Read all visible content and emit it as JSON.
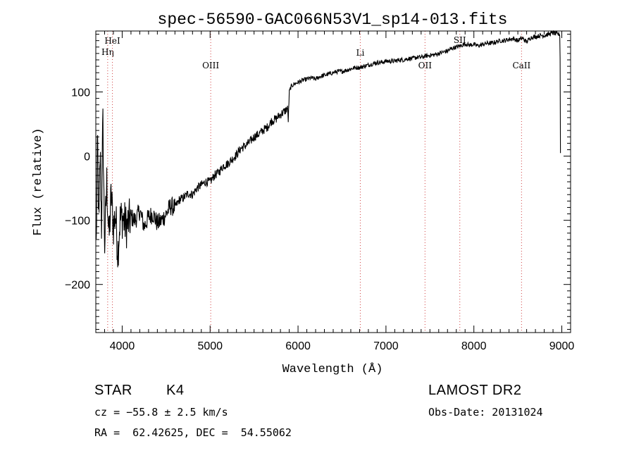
{
  "chart_data": {
    "type": "line",
    "title": "spec-56590-GAC066N53V1_sp14-013.fits",
    "xlabel": "Wavelength (Å)",
    "ylabel": "Flux (relative)",
    "xlim": [
      3700,
      9100
    ],
    "ylim": [
      -275,
      195
    ],
    "x_ticks": [
      4000,
      5000,
      6000,
      7000,
      8000,
      9000
    ],
    "y_ticks": [
      -200,
      -100,
      0,
      100
    ],
    "grid": false,
    "series": [
      {
        "color": "#000000",
        "x": [
          3705,
          3720,
          3735,
          3750,
          3765,
          3780,
          3800,
          3825,
          3850,
          3875,
          3900,
          3925,
          3950,
          3975,
          4000,
          4050,
          4100,
          4150,
          4200,
          4250,
          4300,
          4350,
          4400,
          4450,
          4500,
          4550,
          4600,
          4650,
          4700,
          4750,
          4800,
          4850,
          4900,
          4950,
          5000,
          5050,
          5100,
          5150,
          5200,
          5250,
          5300,
          5350,
          5400,
          5450,
          5500,
          5550,
          5600,
          5650,
          5700,
          5750,
          5800,
          5850,
          5880,
          5890,
          5900,
          5920,
          5950,
          6000,
          6050,
          6100,
          6150,
          6200,
          6250,
          6300,
          6350,
          6400,
          6450,
          6500,
          6550,
          6600,
          6650,
          6700,
          6750,
          6800,
          6850,
          6900,
          6950,
          7000,
          7050,
          7100,
          7150,
          7200,
          7250,
          7300,
          7350,
          7400,
          7450,
          7500,
          7550,
          7600,
          7650,
          7700,
          7750,
          7800,
          7850,
          7900,
          7950,
          8000,
          8050,
          8100,
          8150,
          8200,
          8250,
          8300,
          8350,
          8400,
          8450,
          8500,
          8550,
          8600,
          8650,
          8700,
          8750,
          8800,
          8850,
          8900,
          8950,
          8980,
          8985
        ],
        "y": [
          -140,
          30,
          -120,
          10,
          -110,
          60,
          -140,
          -40,
          -130,
          -60,
          -110,
          -90,
          -150,
          -100,
          -95,
          -110,
          -95,
          -100,
          -85,
          -110,
          -95,
          -90,
          -105,
          -100,
          -90,
          -78,
          -80,
          -68,
          -65,
          -58,
          -60,
          -50,
          -45,
          -40,
          -40,
          -30,
          -25,
          -15,
          -12,
          -5,
          2,
          12,
          16,
          22,
          30,
          34,
          40,
          45,
          55,
          58,
          65,
          70,
          75,
          55,
          100,
          108,
          112,
          115,
          118,
          120,
          122,
          120,
          124,
          126,
          128,
          130,
          132,
          132,
          134,
          136,
          138,
          138,
          140,
          142,
          144,
          146,
          146,
          148,
          148,
          148,
          150,
          150,
          152,
          152,
          154,
          154,
          156,
          157,
          158,
          160,
          162,
          164,
          168,
          170,
          172,
          175,
          173,
          174,
          172,
          174,
          176,
          176,
          178,
          180,
          180,
          182,
          183,
          180,
          184,
          178,
          185,
          186,
          188,
          188,
          190,
          192,
          190,
          190,
          5
        ]
      }
    ],
    "reference_lines": [
      {
        "x": 3835,
        "label": "Hη"
      },
      {
        "x": 3889,
        "label": "HeI"
      },
      {
        "x": 5007,
        "label": "OIII"
      },
      {
        "x": 6708,
        "label": "Li"
      },
      {
        "x": 7444,
        "label": "OII"
      },
      {
        "x": 7840,
        "label": "SII"
      },
      {
        "x": 8542,
        "label": "CaII"
      }
    ],
    "reference_line_color": "#d04040"
  },
  "footer": {
    "object_class": "STAR",
    "subclass": "K4",
    "redshift": "cz = −55.8 ± 2.5 km/s",
    "coords": "RA =  62.42625, DEC =  54.55062",
    "survey": "LAMOST DR2",
    "obs_date": "Obs-Date: 20131024"
  }
}
